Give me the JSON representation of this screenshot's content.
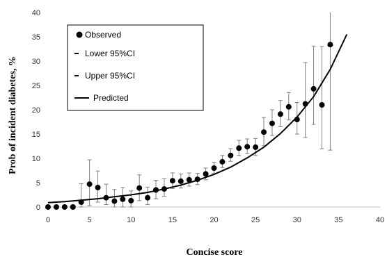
{
  "chart_data": {
    "type": "scatter",
    "xlabel": "Concise score",
    "ylabel": "Prob of incident diabetes, %",
    "xlim": [
      0,
      40
    ],
    "ylim": [
      0,
      40
    ],
    "x_ticks": [
      "0",
      "5",
      "10",
      "15",
      "20",
      "25",
      "30",
      "35",
      "40"
    ],
    "y_ticks": [
      "0",
      "5",
      "10",
      "15",
      "20",
      "25",
      "30",
      "35",
      "40"
    ],
    "grid": false,
    "legend_position": "top-left",
    "legend": {
      "observed": "Observed",
      "lower": "Lower 95%CI",
      "upper": "Upper 95%CI",
      "predicted": "Predicted"
    },
    "colors": {
      "marker": "#000000",
      "errorbar": "#7f7f7f",
      "line": "#000000",
      "axis": "#bfbfbf"
    },
    "series": [
      {
        "name": "Observed",
        "x": [
          0,
          1,
          2,
          3,
          4,
          5,
          6,
          7,
          8,
          9,
          10,
          11,
          12,
          13,
          14,
          15,
          16,
          17,
          18,
          19,
          20,
          21,
          22,
          23,
          24,
          25,
          26,
          27,
          28,
          29,
          30,
          31,
          32,
          33,
          34
        ],
        "y": [
          0,
          0,
          0,
          0,
          1.0,
          4.7,
          4.0,
          1.9,
          1.2,
          1.6,
          1.3,
          3.9,
          1.9,
          3.5,
          3.7,
          5.4,
          5.3,
          5.6,
          5.7,
          6.8,
          8.0,
          9.3,
          10.6,
          12.1,
          12.4,
          12.3,
          15.4,
          17.2,
          19.1,
          20.6,
          18.0,
          21.2,
          24.3,
          21.0,
          33.4
        ],
        "lower": [
          0,
          0,
          0,
          0,
          0,
          0.3,
          1.0,
          0.5,
          0,
          0,
          0,
          1.3,
          0.5,
          1.7,
          2.2,
          3.8,
          3.9,
          4.3,
          4.6,
          5.6,
          6.9,
          8.1,
          9.4,
          10.6,
          11.0,
          10.6,
          12.6,
          14.7,
          16.5,
          17.9,
          15.0,
          14.3,
          17.0,
          12.0,
          11.7
        ],
        "upper": [
          0,
          0,
          0,
          0,
          4.8,
          9.7,
          7.4,
          4.7,
          3.6,
          4.0,
          3.3,
          6.6,
          4.1,
          5.5,
          5.8,
          7.0,
          6.8,
          7.0,
          6.9,
          8.0,
          9.2,
          10.6,
          12.0,
          13.7,
          14.0,
          14.1,
          18.4,
          20.0,
          21.9,
          23.5,
          21.5,
          29.7,
          33.1,
          33.0,
          41.0
        ]
      },
      {
        "name": "Predicted",
        "x": [
          0,
          2,
          4,
          6,
          8,
          10,
          12,
          14,
          16,
          18,
          20,
          22,
          24,
          26,
          28,
          30,
          32,
          34,
          36
        ],
        "y": [
          0.9,
          1.1,
          1.4,
          1.7,
          2.1,
          2.5,
          3.0,
          3.7,
          4.5,
          5.5,
          6.7,
          8.2,
          10.1,
          12.3,
          15.1,
          18.5,
          22.7,
          28.3,
          35.5
        ]
      }
    ]
  }
}
